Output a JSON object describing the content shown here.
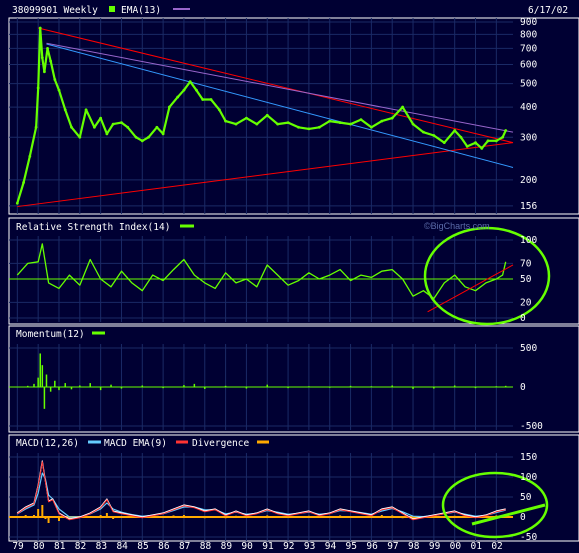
{
  "header": {
    "symbol_label": "38099901 Weekly",
    "date": "6/17/02",
    "watermark": "©BigCharts.com"
  },
  "colors": {
    "background": "#000033",
    "grid": "#1a2a66",
    "frame": "#ffffff",
    "price": "#66ff00",
    "ema": "#66ff00",
    "trend_red": "#ff0000",
    "trend_blue": "#3399ff",
    "trend_purple": "#9966cc",
    "macd": "#ffffff",
    "macd_ema": "#66ccff",
    "divergence_line": "#ff3333",
    "divergence_hist": "#ffaa00",
    "annotation": "#66ff00"
  },
  "chart_data": [
    {
      "type": "line",
      "panel": "price",
      "scale": "log",
      "legend": [
        {
          "label": "38099901 Weekly",
          "color": "#66ff00"
        },
        {
          "label": "EMA(13)",
          "color": "#66ff00"
        },
        {
          "label": "",
          "color": "#9966cc"
        }
      ],
      "ylim": [
        150,
        900
      ],
      "yticks": [
        156,
        200,
        300,
        400,
        500,
        600,
        700,
        800,
        900
      ],
      "x": [
        1979.0,
        1979.3,
        1979.6,
        1979.9,
        1980.0,
        1980.1,
        1980.2,
        1980.3,
        1980.45,
        1980.6,
        1980.8,
        1981.0,
        1981.3,
        1981.6,
        1982.0,
        1982.3,
        1982.7,
        1983.0,
        1983.3,
        1983.6,
        1984.0,
        1984.3,
        1984.7,
        1985.0,
        1985.3,
        1985.7,
        1986.0,
        1986.3,
        1986.7,
        1987.0,
        1987.3,
        1987.6,
        1987.9,
        1988.3,
        1988.7,
        1989.0,
        1989.5,
        1990.0,
        1990.5,
        1991.0,
        1991.5,
        1992.0,
        1992.5,
        1993.0,
        1993.5,
        1994.0,
        1994.5,
        1995.0,
        1995.5,
        1996.0,
        1996.5,
        1997.0,
        1997.5,
        1998.0,
        1998.5,
        1999.0,
        1999.5,
        2000.0,
        2000.3,
        2000.6,
        2001.0,
        2001.3,
        2001.6,
        2002.0,
        2002.3,
        2002.45
      ],
      "y": [
        160,
        195,
        250,
        330,
        480,
        850,
        640,
        560,
        700,
        620,
        520,
        470,
        390,
        330,
        300,
        390,
        330,
        360,
        310,
        340,
        345,
        330,
        300,
        290,
        300,
        330,
        310,
        400,
        440,
        470,
        510,
        470,
        430,
        430,
        390,
        350,
        340,
        360,
        340,
        370,
        340,
        345,
        330,
        325,
        330,
        350,
        345,
        340,
        355,
        330,
        350,
        360,
        400,
        340,
        315,
        305,
        285,
        320,
        300,
        275,
        285,
        270,
        290,
        290,
        300,
        320
      ],
      "trendlines": [
        {
          "name": "resistance",
          "color": "#ff0000",
          "from": [
            1980.0,
            850
          ],
          "to": [
            2002.8,
            285
          ]
        },
        {
          "name": "support",
          "color": "#ff0000",
          "from": [
            1979.0,
            155
          ],
          "to": [
            2002.8,
            285
          ]
        },
        {
          "name": "channel",
          "color": "#3399ff",
          "from": [
            1980.4,
            730
          ],
          "to": [
            2002.8,
            225
          ]
        },
        {
          "name": "ema-guide",
          "color": "#9966cc",
          "from": [
            1980.4,
            735
          ],
          "to": [
            2002.8,
            315
          ]
        }
      ]
    },
    {
      "type": "line",
      "panel": "rsi",
      "title": "Relative Strength Index(14)",
      "ylim": [
        0,
        100
      ],
      "yticks": [
        0,
        20,
        50,
        70,
        100
      ],
      "reference": 50,
      "x": [
        1979.0,
        1979.5,
        1980.0,
        1980.2,
        1980.5,
        1981.0,
        1981.5,
        1982.0,
        1982.5,
        1983.0,
        1983.5,
        1984.0,
        1984.5,
        1985.0,
        1985.5,
        1986.0,
        1986.5,
        1987.0,
        1987.5,
        1988.0,
        1988.5,
        1989.0,
        1989.5,
        1990.0,
        1990.5,
        1991.0,
        1991.5,
        1992.0,
        1992.5,
        1993.0,
        1993.5,
        1994.0,
        1994.5,
        1995.0,
        1995.5,
        1996.0,
        1996.5,
        1997.0,
        1997.5,
        1998.0,
        1998.5,
        1999.0,
        1999.5,
        2000.0,
        2000.5,
        2001.0,
        2001.5,
        2002.0,
        2002.3,
        2002.45
      ],
      "y": [
        55,
        70,
        72,
        95,
        45,
        38,
        55,
        42,
        75,
        50,
        40,
        60,
        45,
        35,
        55,
        48,
        62,
        75,
        55,
        45,
        38,
        58,
        45,
        50,
        40,
        68,
        55,
        42,
        48,
        58,
        50,
        55,
        62,
        48,
        55,
        52,
        60,
        62,
        50,
        28,
        35,
        25,
        45,
        55,
        40,
        35,
        45,
        50,
        55,
        72
      ],
      "trendlines": [
        {
          "name": "rsi-support",
          "color": "#ff0000",
          "from": [
            1998.7,
            8
          ],
          "to": [
            2002.8,
            68
          ]
        }
      ]
    },
    {
      "type": "line",
      "panel": "momentum",
      "title": "Momentum(12)",
      "ylim": [
        -500,
        500
      ],
      "yticks": [
        -500,
        0,
        500
      ],
      "x": [
        1979.0,
        1979.5,
        1979.8,
        1980.0,
        1980.1,
        1980.2,
        1980.3,
        1980.4,
        1980.6,
        1980.8,
        1981.0,
        1981.3,
        1981.6,
        1982.0,
        1982.5,
        1983.0,
        1983.5,
        1984.0,
        1985.0,
        1986.0,
        1987.0,
        1987.5,
        1988.0,
        1989.0,
        1990.0,
        1991.0,
        1992.0,
        1993.0,
        1994.0,
        1995.0,
        1996.0,
        1997.0,
        1998.0,
        1999.0,
        2000.0,
        2001.0,
        2002.0,
        2002.45
      ],
      "y": [
        5,
        15,
        40,
        120,
        430,
        280,
        -280,
        160,
        -60,
        80,
        -40,
        50,
        -30,
        20,
        50,
        -40,
        30,
        -20,
        20,
        -15,
        25,
        40,
        -25,
        15,
        -20,
        30,
        -15,
        10,
        -10,
        15,
        10,
        20,
        -25,
        -20,
        20,
        -15,
        10,
        15
      ]
    },
    {
      "type": "line",
      "panel": "macd",
      "ylim": [
        -50,
        150
      ],
      "yticks": [
        -50,
        0,
        50,
        100,
        150
      ],
      "legend": [
        {
          "label": "MACD(12,26)",
          "color": "#ffffff"
        },
        {
          "label": "MACD EMA(9)",
          "color": "#66ccff"
        },
        {
          "label": "Divergence",
          "color": "#ff3333"
        },
        {
          "label": "",
          "color": "#ffaa00"
        }
      ],
      "x": [
        1979.0,
        1979.4,
        1979.8,
        1980.0,
        1980.2,
        1980.35,
        1980.5,
        1980.7,
        1981.0,
        1981.5,
        1982.0,
        1982.5,
        1983.0,
        1983.3,
        1983.6,
        1984.0,
        1984.5,
        1985.0,
        1985.5,
        1986.0,
        1986.5,
        1987.0,
        1987.5,
        1988.0,
        1988.5,
        1989.0,
        1989.5,
        1990.0,
        1990.5,
        1991.0,
        1991.5,
        1992.0,
        1992.5,
        1993.0,
        1993.5,
        1994.0,
        1994.5,
        1995.0,
        1995.5,
        1996.0,
        1996.5,
        1997.0,
        1997.5,
        1998.0,
        1998.5,
        1999.0,
        1999.5,
        2000.0,
        2000.5,
        2001.0,
        2001.5,
        2002.0,
        2002.45
      ],
      "series": [
        {
          "name": "MACD(12,26)",
          "values": [
            10,
            25,
            35,
            80,
            140,
            90,
            40,
            45,
            10,
            -5,
            0,
            10,
            25,
            45,
            15,
            10,
            5,
            0,
            5,
            10,
            20,
            30,
            25,
            15,
            20,
            5,
            15,
            5,
            10,
            20,
            10,
            5,
            10,
            15,
            5,
            10,
            20,
            15,
            10,
            5,
            20,
            25,
            10,
            -5,
            0,
            5,
            10,
            15,
            5,
            0,
            5,
            15,
            20
          ]
        },
        {
          "name": "MACD EMA(9)",
          "values": [
            8,
            20,
            30,
            60,
            110,
            95,
            55,
            45,
            20,
            0,
            0,
            8,
            20,
            35,
            20,
            12,
            6,
            2,
            4,
            8,
            16,
            25,
            25,
            18,
            18,
            8,
            12,
            7,
            9,
            16,
            12,
            7,
            9,
            12,
            7,
            9,
            16,
            15,
            11,
            7,
            15,
            21,
            13,
            2,
            1,
            4,
            8,
            12,
            7,
            2,
            4,
            11,
            17
          ]
        },
        {
          "name": "Divergence",
          "values": [
            2,
            5,
            5,
            20,
            30,
            -5,
            -15,
            0,
            -10,
            -5,
            0,
            2,
            5,
            10,
            -5,
            -2,
            -1,
            -2,
            1,
            2,
            4,
            5,
            0,
            -3,
            2,
            -3,
            3,
            -2,
            1,
            4,
            -2,
            -2,
            1,
            3,
            -2,
            1,
            4,
            0,
            -1,
            -2,
            5,
            4,
            -3,
            -7,
            -1,
            1,
            2,
            3,
            -2,
            -2,
            1,
            4,
            3
          ]
        }
      ]
    }
  ],
  "x_axis": {
    "labels": [
      "79",
      "80",
      "81",
      "82",
      "83",
      "84",
      "85",
      "86",
      "87",
      "88",
      "89",
      "90",
      "91",
      "92",
      "93",
      "94",
      "95",
      "96",
      "97",
      "98",
      "99",
      "00",
      "01",
      "02"
    ],
    "xlim": [
      1978.6,
      2002.8
    ]
  }
}
